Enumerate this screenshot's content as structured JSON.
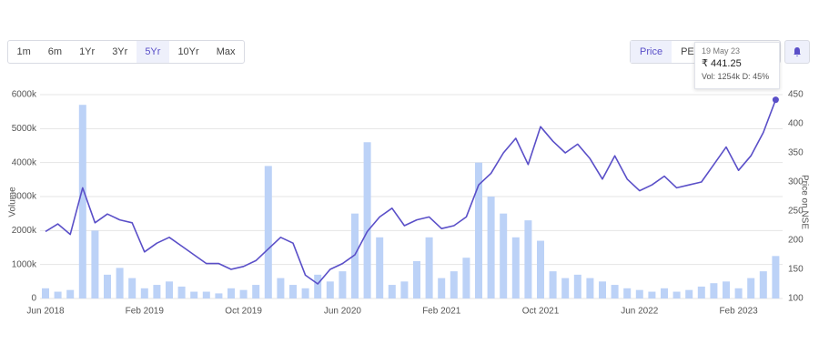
{
  "range_buttons": {
    "items": [
      "1m",
      "6m",
      "1Yr",
      "3Yr",
      "5Yr",
      "10Yr",
      "Max"
    ],
    "active": 4
  },
  "view_buttons": {
    "items": [
      "Price",
      "PE"
    ],
    "active": 0
  },
  "tooltip": {
    "date": "19 May 23",
    "price": "₹ 441.25",
    "volume": "Vol: 1254k",
    "delivery": "D: 45%"
  },
  "chart_data": {
    "type": "combo",
    "ylabel": "Volume",
    "y2label": "Price on NSE",
    "categories": [
      "Jun 2018",
      null,
      null,
      null,
      null,
      null,
      null,
      null,
      "Feb 2019",
      null,
      null,
      null,
      null,
      null,
      null,
      null,
      "Oct 2019",
      null,
      null,
      null,
      null,
      null,
      null,
      null,
      "Jun 2020",
      null,
      null,
      null,
      null,
      null,
      null,
      null,
      "Feb 2021",
      null,
      null,
      null,
      null,
      null,
      null,
      null,
      "Oct 2021",
      null,
      null,
      null,
      null,
      null,
      null,
      null,
      "Jun 2022",
      null,
      null,
      null,
      null,
      null,
      null,
      null,
      "Feb 2023",
      null,
      null,
      null
    ],
    "ylim": [
      0,
      6000
    ],
    "yticks": [
      {
        "value": 0,
        "label": "0"
      },
      {
        "value": 1000,
        "label": "1000k"
      },
      {
        "value": 2000,
        "label": "2000k"
      },
      {
        "value": 3000,
        "label": "3000k"
      },
      {
        "value": 4000,
        "label": "4000k"
      },
      {
        "value": 5000,
        "label": "5000k"
      },
      {
        "value": 6000,
        "label": "6000k"
      }
    ],
    "y2lim": [
      100,
      450
    ],
    "y2ticks": [
      100,
      150,
      200,
      250,
      300,
      350,
      400,
      450
    ],
    "grid": true,
    "series": [
      {
        "type": "bar",
        "color": "#bcd2f7",
        "values": [
          300,
          200,
          250,
          5700,
          2000,
          700,
          900,
          600,
          300,
          400,
          500,
          350,
          200,
          200,
          150,
          300,
          250,
          400,
          3900,
          600,
          400,
          300,
          700,
          500,
          800,
          2500,
          4600,
          1800,
          400,
          500,
          1100,
          1800,
          600,
          800,
          1200,
          4000,
          3000,
          2500,
          1800,
          2300,
          1700,
          800,
          600,
          700,
          600,
          500,
          400,
          300,
          250,
          200,
          300,
          200,
          250,
          350,
          450,
          500,
          300,
          600,
          800,
          1250
        ]
      },
      {
        "type": "line",
        "axis": "y2",
        "color": "#5a4fc8",
        "values": [
          215,
          228,
          210,
          290,
          230,
          245,
          235,
          230,
          180,
          195,
          205,
          190,
          175,
          160,
          160,
          150,
          155,
          165,
          185,
          205,
          195,
          140,
          125,
          150,
          160,
          175,
          215,
          240,
          255,
          225,
          235,
          240,
          220,
          225,
          240,
          295,
          315,
          350,
          375,
          330,
          395,
          370,
          350,
          365,
          340,
          305,
          345,
          305,
          285,
          295,
          310,
          290,
          295,
          300,
          330,
          360,
          320,
          345,
          385,
          441.25
        ]
      }
    ]
  }
}
